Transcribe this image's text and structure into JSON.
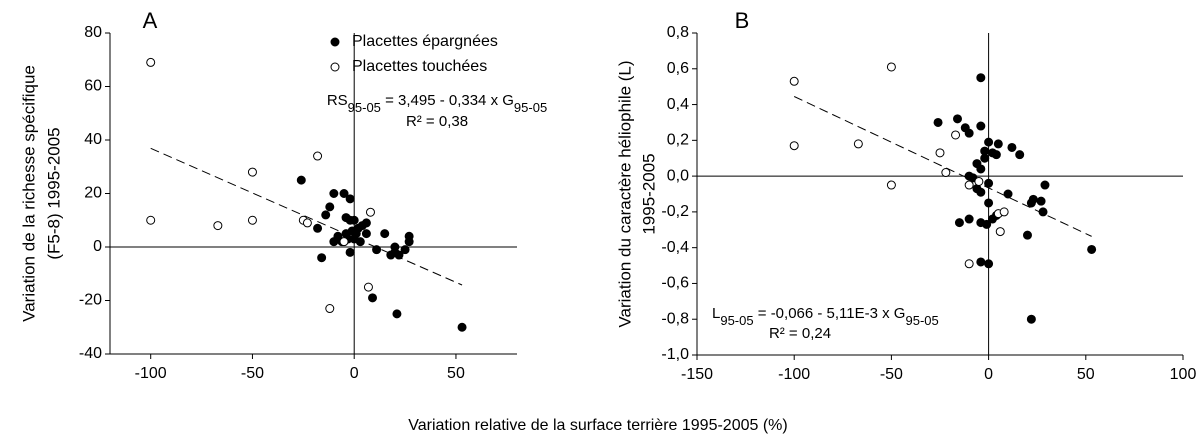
{
  "xlabel": "Variation relative de la surface terrière 1995-2005 (%)",
  "chart_data": [
    {
      "type": "scatter",
      "panel_label": "A",
      "ylabel": [
        "Variation de la richesse spécifique",
        "(F5-8) 1995-2005"
      ],
      "xlim": [
        -120,
        80
      ],
      "xticks": [
        -100,
        -50,
        0,
        50
      ],
      "ylim": [
        -40,
        80
      ],
      "yticks": [
        -40,
        -20,
        0,
        20,
        40,
        60,
        80
      ],
      "hline": 0,
      "vline": 0,
      "legend": "top",
      "series": [
        {
          "name": "Placettes épargnées",
          "marker": "filled",
          "color": "#000000",
          "x": [
            -26,
            -14,
            -10,
            -12,
            -5,
            -2,
            -4,
            -2,
            0,
            -8,
            -6,
            -4,
            -3,
            -1,
            0,
            2,
            4,
            6,
            3,
            1,
            -2,
            -16,
            -18,
            -10,
            6,
            11,
            15,
            18,
            20,
            20,
            22,
            25,
            27,
            27,
            9,
            21,
            53
          ],
          "values": [
            25,
            12,
            20,
            15,
            20,
            18,
            11,
            10,
            10,
            4,
            2,
            5,
            3,
            6,
            3,
            7,
            8,
            9,
            2,
            5,
            -2,
            -4,
            7,
            2,
            5,
            -1,
            5,
            -3,
            -2,
            0,
            -3,
            -1,
            2,
            4,
            -19,
            -25,
            -30
          ]
        },
        {
          "name": "Placettes touchées",
          "marker": "open",
          "color": "#000000",
          "x": [
            -100,
            -100,
            -67,
            -50,
            -50,
            -18,
            -25,
            -23,
            -12,
            7,
            8,
            -5
          ],
          "values": [
            69,
            10,
            8,
            28,
            10,
            34,
            10,
            9,
            -23,
            -15,
            13,
            2
          ]
        }
      ],
      "fit": {
        "x": [
          -100,
          53
        ],
        "intercept": 3.495,
        "slope": -0.334
      },
      "equation": [
        "RS",
        "95-05",
        " = 3,495 - 0,334 x G",
        "95-05"
      ],
      "r2": "R² = 0,38"
    },
    {
      "type": "scatter",
      "panel_label": "B",
      "ylabel": [
        "Variation du caractère héliophile (L)",
        "1995-2005"
      ],
      "xlim": [
        -150,
        100
      ],
      "xticks": [
        -150,
        -100,
        -50,
        0,
        50,
        100
      ],
      "ylim": [
        -1.0,
        0.8
      ],
      "yticks": [
        {
          "value": -1.0,
          "label": "-1,0"
        },
        {
          "value": -0.8,
          "label": "-0,8"
        },
        {
          "value": -0.6,
          "label": "-0,6"
        },
        {
          "value": -0.4,
          "label": "-0,4"
        },
        {
          "value": -0.2,
          "label": "-0,2"
        },
        {
          "value": 0,
          "label": "0,0"
        },
        {
          "value": 0.2,
          "label": "0,2"
        },
        {
          "value": 0.4,
          "label": "0,4"
        },
        {
          "value": 0.6,
          "label": "0,6"
        },
        {
          "value": 0.8,
          "label": "0,8"
        }
      ],
      "hline": 0,
      "vline": 0,
      "series": [
        {
          "marker": "filled",
          "color": "#000000",
          "x": [
            -26,
            -16,
            -12,
            -10,
            -4,
            -4,
            -2,
            0,
            2,
            5,
            4,
            12,
            16,
            -6,
            -4,
            -2,
            -10,
            -8,
            -6,
            -4,
            0,
            -15,
            -10,
            -4,
            -1,
            2,
            0,
            4,
            -4,
            0,
            10,
            20,
            23,
            22,
            27,
            28,
            29,
            22,
            53
          ],
          "values": [
            0.3,
            0.32,
            0.27,
            0.24,
            0.55,
            0.28,
            0.14,
            0.19,
            0.13,
            0.18,
            0.12,
            0.16,
            0.12,
            0.07,
            0.04,
            0.1,
            0,
            -0.01,
            -0.07,
            -0.09,
            -0.04,
            -0.26,
            -0.24,
            -0.26,
            -0.27,
            -0.24,
            -0.15,
            -0.22,
            -0.48,
            -0.49,
            -0.1,
            -0.33,
            -0.13,
            -0.15,
            -0.14,
            -0.2,
            -0.05,
            -0.8,
            -0.41
          ]
        },
        {
          "marker": "open",
          "color": "#000000",
          "x": [
            -100,
            -100,
            -67,
            -50,
            -50,
            -25,
            -22,
            -17,
            -10,
            -10,
            5,
            8,
            6,
            -5
          ],
          "values": [
            0.53,
            0.17,
            0.18,
            0.61,
            -0.05,
            0.13,
            0.02,
            0.23,
            -0.05,
            -0.49,
            -0.21,
            -0.2,
            -0.31,
            -0.03
          ]
        }
      ],
      "fit": {
        "x": [
          -100,
          53
        ],
        "intercept": -0.066,
        "slope": -0.00511
      },
      "equation": [
        "L",
        "95-05",
        " = -0,066 - 5,11E-3 x G",
        "95-05"
      ],
      "r2": "R² = 0,24"
    }
  ]
}
